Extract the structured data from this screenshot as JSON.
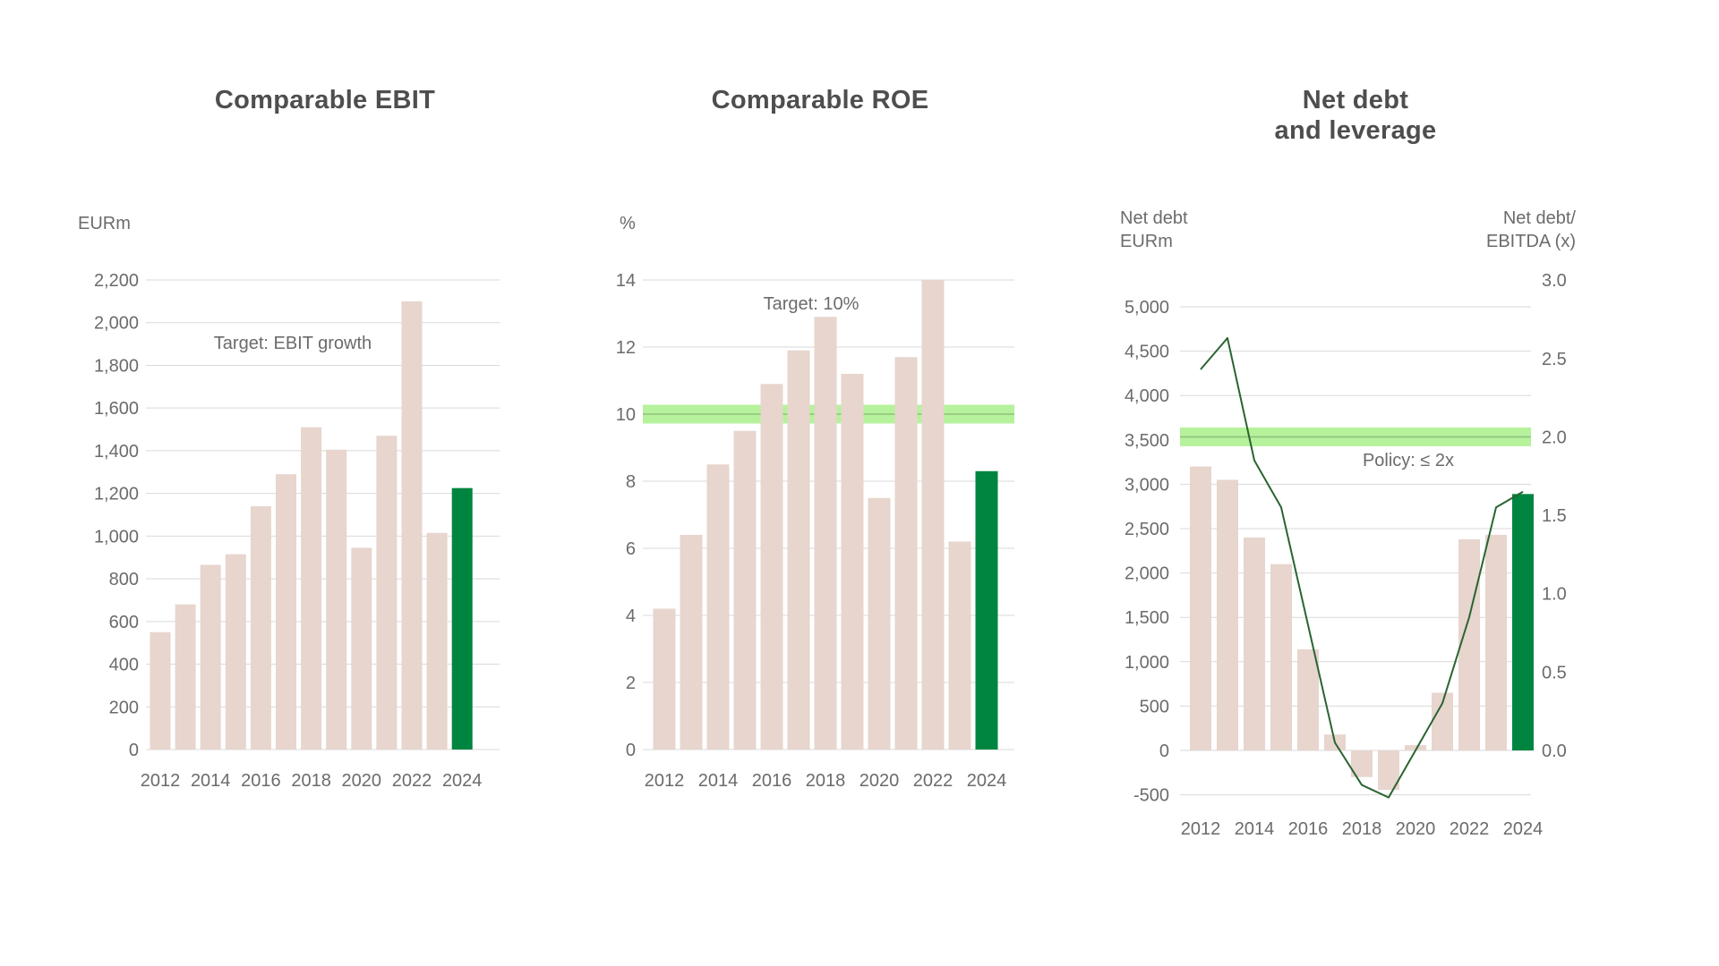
{
  "colors": {
    "bar": "#e7d5ce",
    "highlight": "#008540",
    "band": "#b6f29c",
    "band_line": "#8fbf7d",
    "line": "#2a6432",
    "grid": "#d9d9d9",
    "text": "#6b6b6b",
    "title": "#4e4e4e"
  },
  "chart_data": [
    {
      "id": "ebit",
      "type": "bar",
      "title": "Comparable EBIT",
      "unit_label": "EURm",
      "annotation": "Target: EBIT growth",
      "categories": [
        2012,
        2013,
        2014,
        2015,
        2016,
        2017,
        2018,
        2019,
        2020,
        2021,
        2022,
        2023,
        2024
      ],
      "values": [
        550,
        680,
        865,
        915,
        1140,
        1290,
        1510,
        1405,
        945,
        1470,
        2100,
        1015,
        1225
      ],
      "highlight_last": true,
      "ylim": [
        0,
        2200
      ],
      "ytick_step": 200,
      "ytick_labels": [
        "0",
        "200",
        "400",
        "600",
        "800",
        "1,000",
        "1,200",
        "1,400",
        "1,600",
        "1,800",
        "2,000",
        "2,200"
      ],
      "xtick_labels": [
        "2012",
        "2014",
        "2016",
        "2018",
        "2020",
        "2022",
        "2024"
      ],
      "grid": true,
      "legend": "none"
    },
    {
      "id": "roe",
      "type": "bar",
      "title": "Comparable ROE",
      "unit_label": "%",
      "annotation": "Target: 10%",
      "categories": [
        2012,
        2013,
        2014,
        2015,
        2016,
        2017,
        2018,
        2019,
        2020,
        2021,
        2022,
        2023,
        2024
      ],
      "values": [
        4.2,
        6.4,
        8.5,
        9.5,
        10.9,
        11.9,
        12.9,
        11.2,
        7.5,
        11.7,
        14.0,
        6.2,
        8.3
      ],
      "highlight_last": true,
      "target_band": {
        "value": 10,
        "axis": "left"
      },
      "ylim": [
        0,
        14
      ],
      "ytick_step": 2,
      "ytick_labels": [
        "0",
        "2",
        "4",
        "6",
        "8",
        "10",
        "12",
        "14"
      ],
      "xtick_labels": [
        "2012",
        "2014",
        "2016",
        "2018",
        "2020",
        "2022",
        "2024"
      ],
      "grid": true,
      "legend": "none"
    },
    {
      "id": "netdebt",
      "type": "bar+line",
      "title": "Net debt\nand leverage",
      "left_axis_header": "Net debt\nEURm",
      "right_axis_header": "Net debt/\nEBITDA (x)",
      "annotation": "Policy: ≤ 2x",
      "categories": [
        2012,
        2013,
        2014,
        2015,
        2016,
        2017,
        2018,
        2019,
        2020,
        2021,
        2022,
        2023,
        2024
      ],
      "series": [
        {
          "name": "Net debt (EURm, bars)",
          "values": [
            3200,
            3050,
            2400,
            2100,
            1140,
            180,
            -300,
            -445,
            60,
            650,
            2380,
            2430,
            2890
          ]
        },
        {
          "name": "Net debt/EBITDA (x, line)",
          "values": [
            2.43,
            2.63,
            1.85,
            1.55,
            0.8,
            0.05,
            -0.22,
            -0.3,
            0.0,
            0.3,
            0.85,
            1.55,
            1.65
          ]
        }
      ],
      "highlight_last": true,
      "target_band": {
        "value": 2.0,
        "axis": "right"
      },
      "ylim_left": [
        -500,
        5000
      ],
      "ytick_step_left": 500,
      "ytick_labels_left": [
        "-500",
        "0",
        "500",
        "1,000",
        "1,500",
        "2,000",
        "2,500",
        "3,000",
        "3,500",
        "4,000",
        "4,500",
        "5,000"
      ],
      "ylim_right": [
        0.0,
        3.0
      ],
      "ytick_step_right": 0.5,
      "ytick_labels_right": [
        "0.0",
        "0.5",
        "1.0",
        "1.5",
        "2.0",
        "2.5",
        "3.0"
      ],
      "xtick_labels": [
        "2012",
        "2014",
        "2016",
        "2018",
        "2020",
        "2022",
        "2024"
      ],
      "grid": true,
      "legend": "none"
    }
  ]
}
